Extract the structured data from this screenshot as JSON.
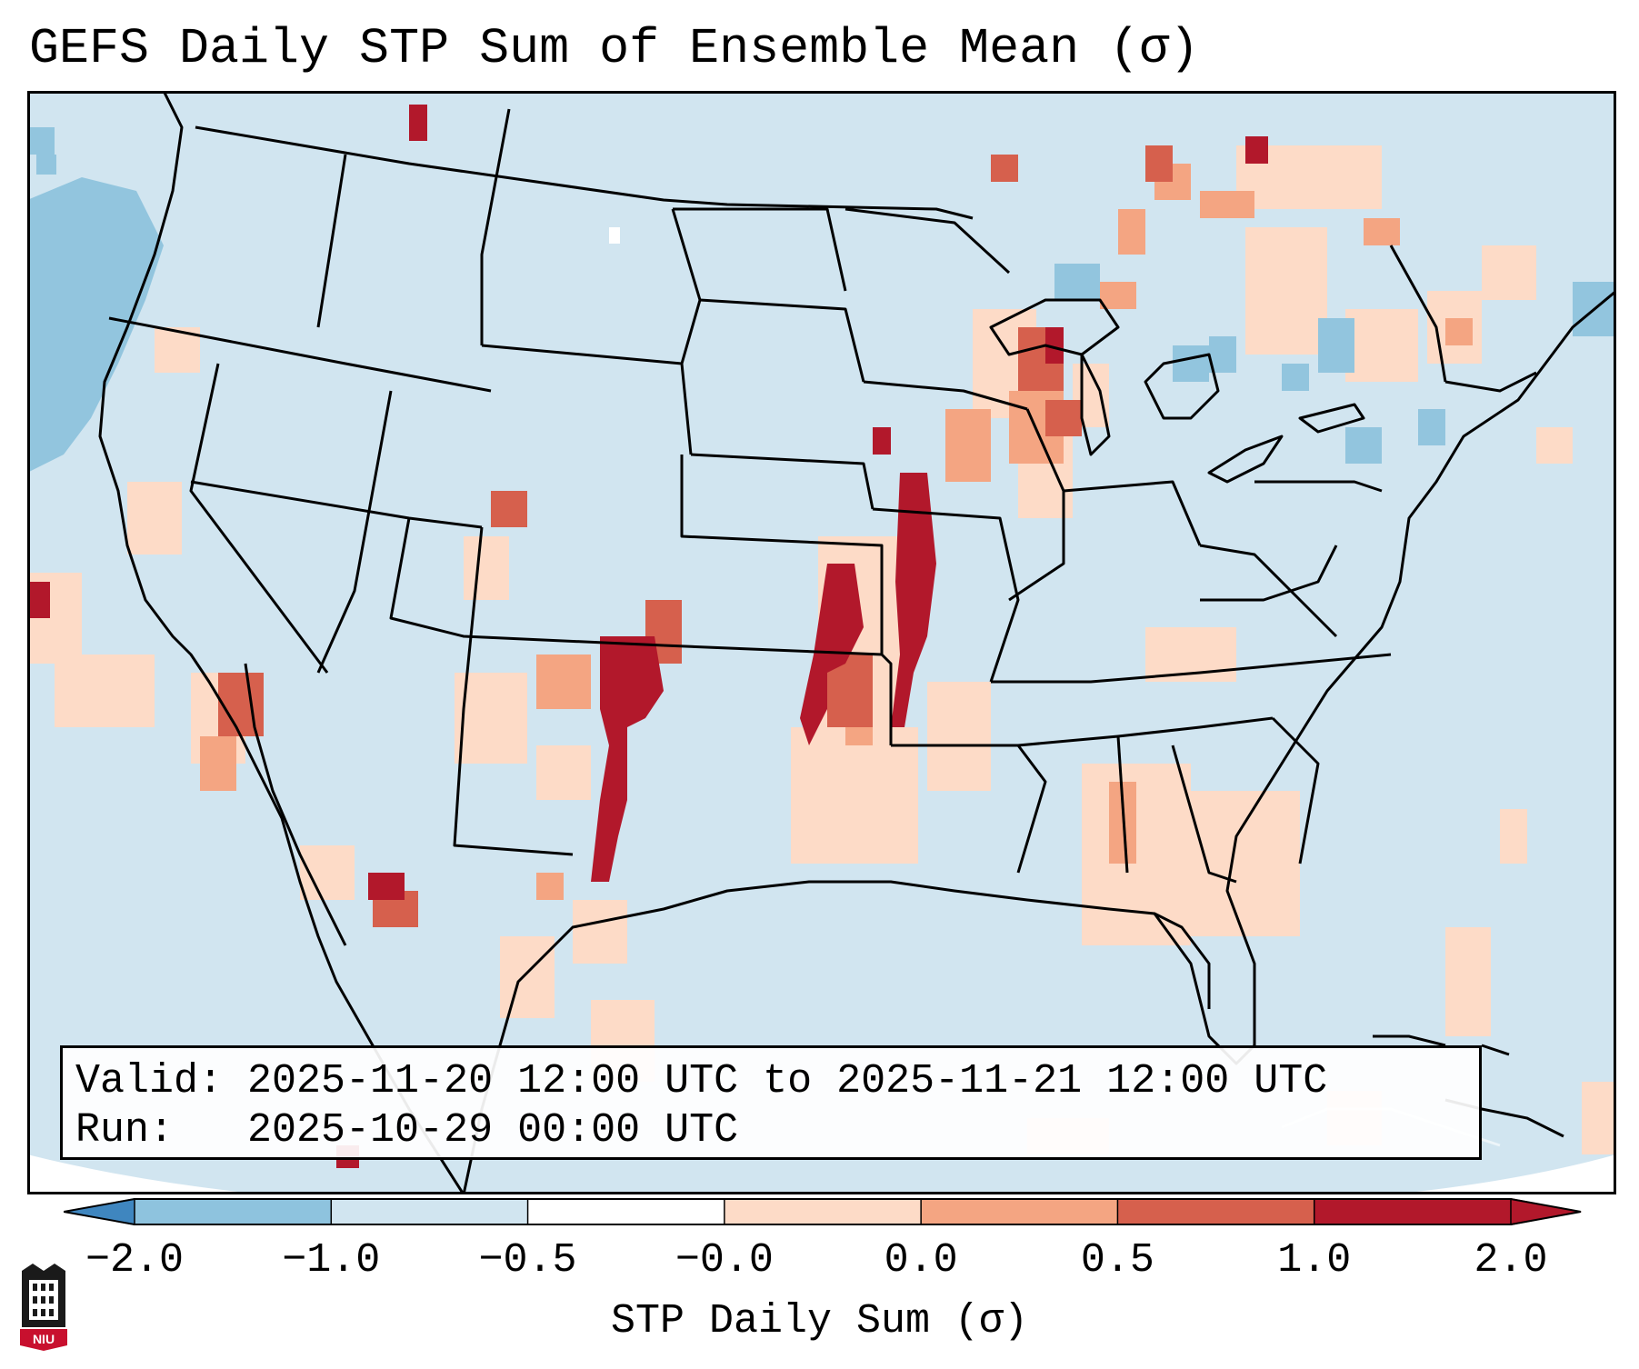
{
  "title": "GEFS Daily STP Sum of Ensemble Mean (σ)",
  "info": {
    "valid_line": "Valid: 2025-11-20 12:00 UTC to 2025-11-21 12:00 UTC",
    "run_line": "Run:   2025-10-29 00:00 UTC"
  },
  "colorbar": {
    "label": "STP Daily Sum (σ)",
    "ticks": [
      "−2.0",
      "−1.0",
      "−0.5",
      "−0.0",
      "0.0",
      "0.5",
      "1.0",
      "2.0"
    ],
    "colors": [
      "#3f86bf",
      "#8ec3de",
      "#d1e5f0",
      "#ffffff",
      "#fddbc7",
      "#f4a582",
      "#d6604d",
      "#b2182b"
    ]
  },
  "colors": {
    "background_field": "#d1e5f0",
    "boundaries": "#000000"
  },
  "logo_icon": "niu-logo-icon",
  "logo_text": "NIU"
}
